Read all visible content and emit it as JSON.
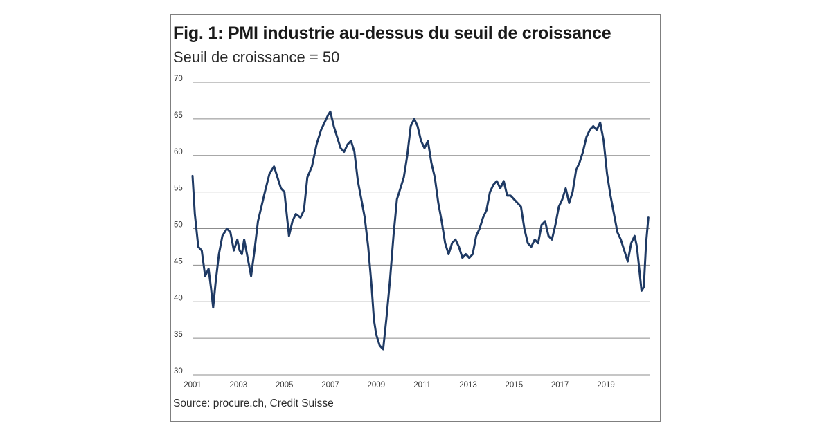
{
  "chart_data": {
    "type": "line",
    "title": "Fig. 1: PMI industrie au-dessus du seuil de croissance",
    "subtitle": "Seuil de croissance = 50",
    "source": "Source: procure.ch, Credit Suisse",
    "xlabel": "",
    "ylabel": "",
    "xlim": [
      2001.0,
      2020.9
    ],
    "ylim": [
      30,
      70
    ],
    "x_ticks": [
      "2001",
      "2003",
      "2005",
      "2007",
      "2009",
      "2011",
      "2013",
      "2015",
      "2017",
      "2019"
    ],
    "y_ticks": [
      "30",
      "35",
      "40",
      "45",
      "50",
      "55",
      "60",
      "65",
      "70"
    ],
    "grid": "horizontal",
    "legend": "none",
    "line_color": "#1f3a64",
    "series": [
      {
        "x": [
          2001.0,
          2001.1,
          2001.25,
          2001.4,
          2001.55,
          2001.7,
          2001.8,
          2001.9,
          2002.0,
          2002.15,
          2002.3,
          2002.5,
          2002.65,
          2002.8,
          2002.95,
          2003.05,
          2003.15,
          2003.25,
          2003.4,
          2003.55,
          2003.7,
          2003.85,
          2004.0,
          2004.15,
          2004.35,
          2004.55,
          2004.7,
          2004.85,
          2005.0,
          2005.1,
          2005.2,
          2005.35,
          2005.5,
          2005.7,
          2005.85,
          2006.0,
          2006.2,
          2006.4,
          2006.6,
          2006.75,
          2006.9,
          2007.0,
          2007.15,
          2007.3,
          2007.45,
          2007.6,
          2007.75,
          2007.9,
          2008.05,
          2008.2,
          2008.35,
          2008.5,
          2008.65,
          2008.8,
          2008.9,
          2009.0,
          2009.15,
          2009.3,
          2009.45,
          2009.6,
          2009.75,
          2009.9,
          2010.05,
          2010.2,
          2010.35,
          2010.5,
          2010.65,
          2010.8,
          2010.95,
          2011.1,
          2011.25,
          2011.4,
          2011.55,
          2011.7,
          2011.85,
          2012.0,
          2012.15,
          2012.3,
          2012.45,
          2012.6,
          2012.75,
          2012.9,
          2013.05,
          2013.2,
          2013.35,
          2013.5,
          2013.65,
          2013.8,
          2013.95,
          2014.1,
          2014.25,
          2014.4,
          2014.55,
          2014.7,
          2014.85,
          2015.0,
          2015.15,
          2015.3,
          2015.45,
          2015.6,
          2015.75,
          2015.9,
          2016.05,
          2016.2,
          2016.35,
          2016.5,
          2016.65,
          2016.8,
          2016.95,
          2017.1,
          2017.25,
          2017.4,
          2017.55,
          2017.7,
          2017.85,
          2018.0,
          2018.15,
          2018.3,
          2018.45,
          2018.6,
          2018.75,
          2018.9,
          2019.05,
          2019.2,
          2019.35,
          2019.5,
          2019.65,
          2019.8,
          2019.95,
          2020.1,
          2020.25,
          2020.35,
          2020.45,
          2020.55,
          2020.65,
          2020.75,
          2020.85
        ],
        "values": [
          57.2,
          52.0,
          47.5,
          47.0,
          43.5,
          44.5,
          42.0,
          39.2,
          42.5,
          46.5,
          49.0,
          50.0,
          49.5,
          47.0,
          48.5,
          47.0,
          46.5,
          48.5,
          46.0,
          43.5,
          47.0,
          51.0,
          53.0,
          55.0,
          57.5,
          58.5,
          57.0,
          55.5,
          55.0,
          52.0,
          49.0,
          51.0,
          52.0,
          51.5,
          52.5,
          57.0,
          58.5,
          61.5,
          63.5,
          64.5,
          65.5,
          66.0,
          64.0,
          62.5,
          61.0,
          60.5,
          61.5,
          62.0,
          60.5,
          56.5,
          54.0,
          51.5,
          47.5,
          42.0,
          37.5,
          35.5,
          34.0,
          33.5,
          38.0,
          43.0,
          49.0,
          54.0,
          55.5,
          57.0,
          60.0,
          64.0,
          65.0,
          64.0,
          62.0,
          61.0,
          62.0,
          59.0,
          57.0,
          53.5,
          51.0,
          48.0,
          46.5,
          48.0,
          48.5,
          47.5,
          46.0,
          46.5,
          46.0,
          46.5,
          49.0,
          50.0,
          51.5,
          52.5,
          55.0,
          56.0,
          56.5,
          55.5,
          56.5,
          54.5,
          54.5,
          54.0,
          53.5,
          53.0,
          50.0,
          48.0,
          47.5,
          48.5,
          48.0,
          50.5,
          51.0,
          49.0,
          48.5,
          50.5,
          53.0,
          54.0,
          55.5,
          53.5,
          55.0,
          58.0,
          59.0,
          60.5,
          62.5,
          63.5,
          64.0,
          63.5,
          64.5,
          62.0,
          57.5,
          54.5,
          52.0,
          49.5,
          48.5,
          47.0,
          45.5,
          48.0,
          49.0,
          47.5,
          44.5,
          41.5,
          42.0,
          48.0,
          51.5
        ]
      }
    ]
  }
}
